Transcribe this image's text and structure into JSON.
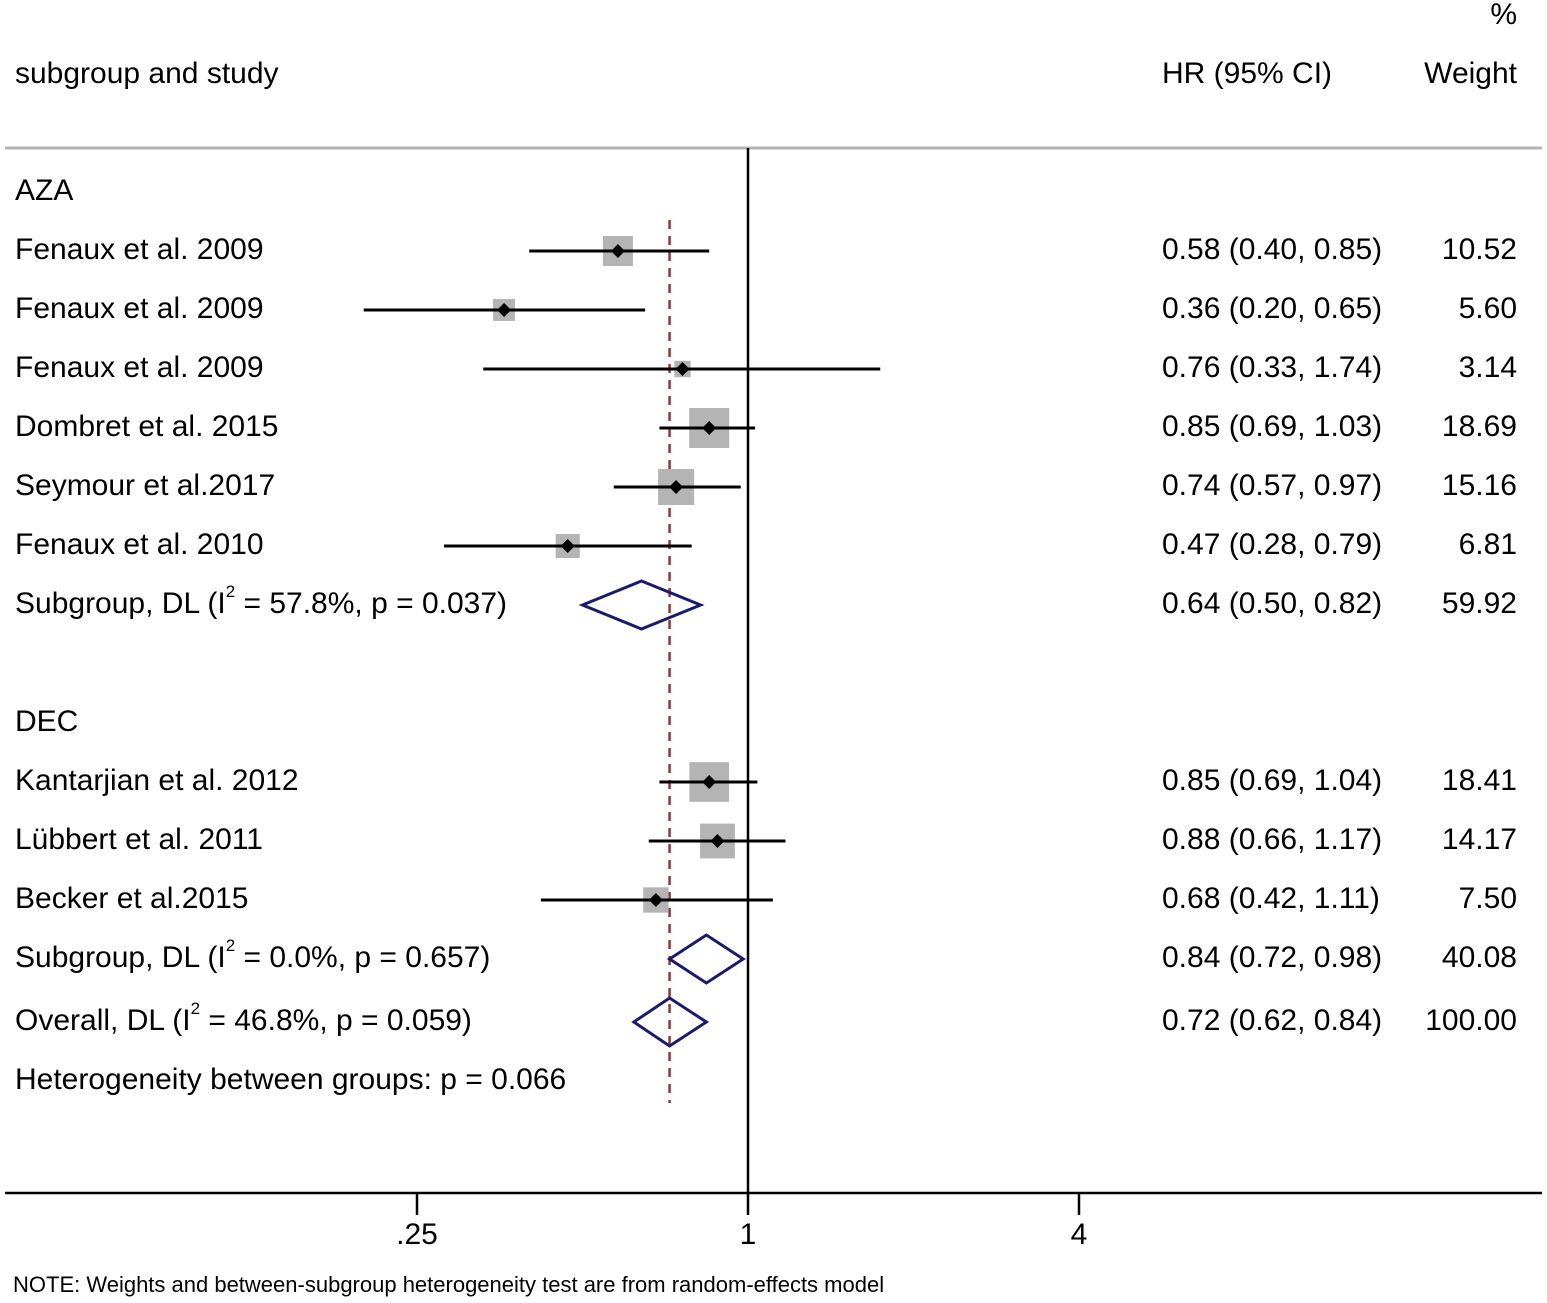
{
  "chart_data": {
    "type": "forest",
    "x_scale": "log",
    "xlim": [
      0.14,
      4.1
    ],
    "ticks": [
      {
        "value": 0.25,
        "label": ".25"
      },
      {
        "value": 1,
        "label": "1"
      },
      {
        "value": 4,
        "label": "4"
      }
    ],
    "null_line": 1,
    "overall_line": 0.72,
    "header": {
      "study": "subgroup and study",
      "hr": "HR (95% CI)",
      "weight_pct": "%",
      "weight": "Weight"
    },
    "groups": [
      {
        "name": "AZA",
        "studies": [
          {
            "label": "Fenaux et al. 2009",
            "hr": 0.58,
            "lo": 0.4,
            "hi": 0.85,
            "ci_text": "0.58 (0.40, 0.85)",
            "weight": "10.52"
          },
          {
            "label": "Fenaux et al. 2009",
            "hr": 0.36,
            "lo": 0.2,
            "hi": 0.65,
            "ci_text": "0.36 (0.20, 0.65)",
            "weight": "5.60"
          },
          {
            "label": "Fenaux et al. 2009",
            "hr": 0.76,
            "lo": 0.33,
            "hi": 1.74,
            "ci_text": "0.76 (0.33, 1.74)",
            "weight": "3.14"
          },
          {
            "label": "Dombret et al. 2015",
            "hr": 0.85,
            "lo": 0.69,
            "hi": 1.03,
            "ci_text": "0.85 (0.69, 1.03)",
            "weight": "18.69"
          },
          {
            "label": "Seymour et al.2017",
            "hr": 0.74,
            "lo": 0.57,
            "hi": 0.97,
            "ci_text": "0.74 (0.57, 0.97)",
            "weight": "15.16"
          },
          {
            "label": "Fenaux et al. 2010",
            "hr": 0.47,
            "lo": 0.28,
            "hi": 0.79,
            "ci_text": "0.47 (0.28, 0.79)",
            "weight": "6.81"
          }
        ],
        "subgroup": {
          "label_pre": "Subgroup, DL (I",
          "sup": "2",
          "label_post": " = 57.8%, p = 0.037)",
          "hr": 0.64,
          "lo": 0.5,
          "hi": 0.82,
          "ci_text": "0.64 (0.50, 0.82)",
          "weight": "59.92"
        }
      },
      {
        "name": "DEC",
        "studies": [
          {
            "label": "Kantarjian et al. 2012",
            "hr": 0.85,
            "lo": 0.69,
            "hi": 1.04,
            "ci_text": "0.85 (0.69, 1.04)",
            "weight": "18.41"
          },
          {
            "label": "Lübbert et al. 2011",
            "hr": 0.88,
            "lo": 0.66,
            "hi": 1.17,
            "ci_text": "0.88 (0.66, 1.17)",
            "weight": "14.17"
          },
          {
            "label": "Becker et al.2015",
            "hr": 0.68,
            "lo": 0.42,
            "hi": 1.11,
            "ci_text": "0.68 (0.42, 1.11)",
            "weight": "7.50"
          }
        ],
        "subgroup": {
          "label_pre": "Subgroup, DL (I",
          "sup": "2",
          "label_post": " = 0.0%, p = 0.657)",
          "hr": 0.84,
          "lo": 0.72,
          "hi": 0.98,
          "ci_text": "0.84 (0.72, 0.98)",
          "weight": "40.08"
        }
      }
    ],
    "overall": {
      "label_pre": "Overall, DL (I",
      "sup": "2",
      "label_post": " = 46.8%, p = 0.059)",
      "hr": 0.72,
      "lo": 0.62,
      "hi": 0.84,
      "ci_text": "0.72 (0.62, 0.84)",
      "weight": "100.00"
    },
    "heterogeneity": "Heterogeneity between groups: p = 0.066",
    "note": "NOTE: Weights and between-subgroup heterogeneity test are from random-effects model"
  }
}
